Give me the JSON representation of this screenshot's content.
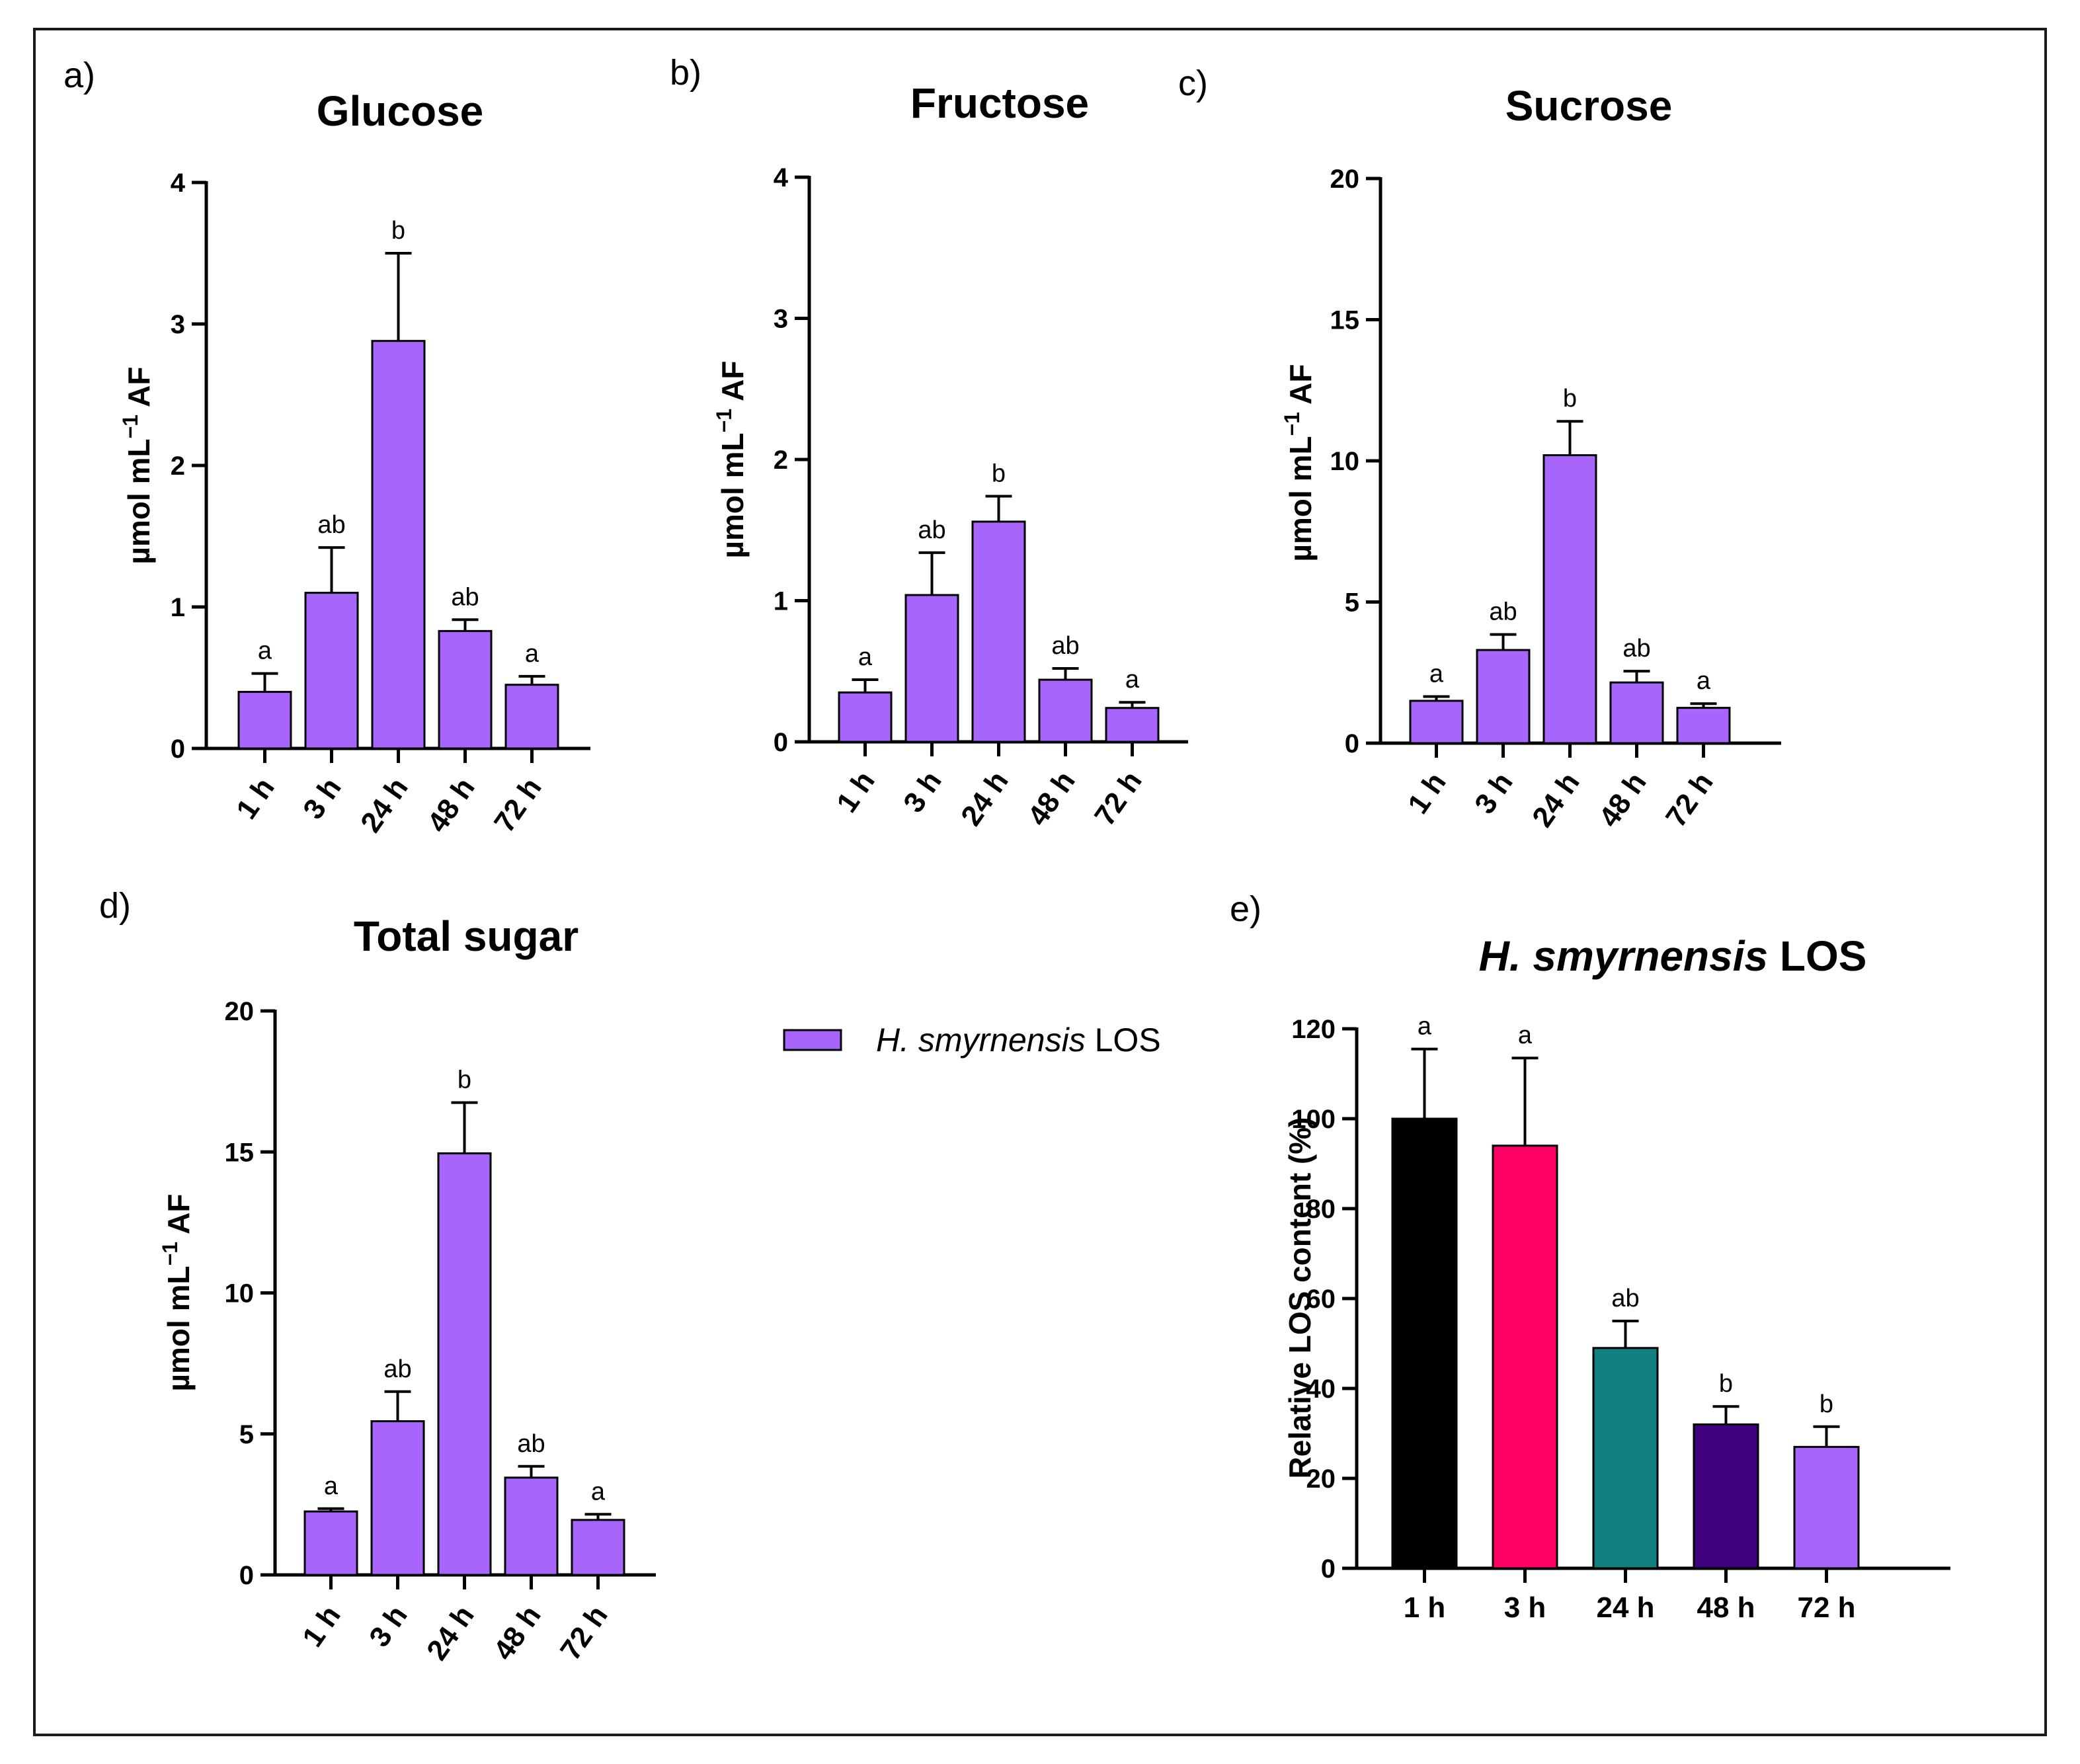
{
  "colors": {
    "bar": "#a765fb",
    "axis": "#000000",
    "los_bars": [
      "#000000",
      "#ff0066",
      "#127f80",
      "#3f007f",
      "#a765fb"
    ]
  },
  "legend": {
    "italic": "H. smyrnensis",
    "rest": " LOS"
  },
  "chart_data": [
    {
      "panel": "a)",
      "type": "bar",
      "title": "Glucose",
      "ylabel": {
        "base": "µmol mL",
        "sup": "−1",
        "tail": " AF"
      },
      "categories": [
        "1 h",
        "3 h",
        "24 h",
        "48 h",
        "72 h"
      ],
      "values": [
        0.4,
        1.1,
        2.88,
        0.83,
        0.45
      ],
      "errors": [
        0.13,
        0.32,
        0.62,
        0.08,
        0.06
      ],
      "significance": [
        "a",
        "ab",
        "b",
        "ab",
        "a"
      ],
      "ylim": [
        0,
        4
      ],
      "yticks": [
        0,
        1,
        2,
        3,
        4
      ],
      "ytick_labels": [
        "0",
        "1",
        "2",
        "3",
        "4"
      ]
    },
    {
      "panel": "b)",
      "type": "bar",
      "title": "Fructose",
      "ylabel": {
        "base": "µmol mL",
        "sup": "−1",
        "tail": " AF"
      },
      "categories": [
        "1 h",
        "3 h",
        "24 h",
        "48 h",
        "72 h"
      ],
      "values": [
        0.35,
        1.04,
        1.56,
        0.44,
        0.24
      ],
      "errors": [
        0.09,
        0.3,
        0.18,
        0.08,
        0.04
      ],
      "significance": [
        "a",
        "ab",
        "b",
        "ab",
        "a"
      ],
      "ylim": [
        0,
        4
      ],
      "yticks": [
        0,
        1,
        2,
        3,
        4
      ],
      "ytick_labels": [
        "0",
        "1",
        "2",
        "3",
        "4"
      ]
    },
    {
      "panel": "c)",
      "type": "bar",
      "title": "Sucrose",
      "ylabel": {
        "base": "µmol mL",
        "sup": "−1",
        "tail": " AF"
      },
      "categories": [
        "1 h",
        "3 h",
        "24 h",
        "48 h",
        "72 h"
      ],
      "values": [
        1.5,
        3.3,
        10.2,
        2.15,
        1.25
      ],
      "errors": [
        0.15,
        0.55,
        1.2,
        0.4,
        0.15
      ],
      "significance": [
        "a",
        "ab",
        "b",
        "ab",
        "a"
      ],
      "ylim": [
        0,
        20
      ],
      "yticks": [
        0,
        5,
        10,
        15,
        20
      ],
      "ytick_labels": [
        "0",
        "5",
        "10",
        "15",
        "20"
      ]
    },
    {
      "panel": "d)",
      "type": "bar",
      "title": "Total sugar",
      "ylabel": {
        "base": "µmol mL",
        "sup": "−1",
        "tail": " AF"
      },
      "categories": [
        "1 h",
        "3 h",
        "24 h",
        "48 h",
        "72 h"
      ],
      "values": [
        2.25,
        5.45,
        14.95,
        3.45,
        1.95
      ],
      "errors": [
        0.1,
        1.05,
        1.8,
        0.4,
        0.2
      ],
      "significance": [
        "a",
        "ab",
        "b",
        "ab",
        "a"
      ],
      "ylim": [
        0,
        20
      ],
      "yticks": [
        0,
        5,
        10,
        15,
        20
      ],
      "ytick_labels": [
        "0",
        "5",
        "10",
        "15",
        "20"
      ]
    },
    {
      "panel": "e)",
      "type": "bar",
      "title_italic": "H. smyrnensis",
      "title_rest": " LOS",
      "ylabel_text": "Relative LOS content (%)",
      "categories": [
        "1 h",
        "3 h",
        "24 h",
        "48 h",
        "72 h"
      ],
      "values": [
        100,
        94,
        49,
        32,
        27
      ],
      "errors": [
        15.5,
        19.5,
        6,
        4,
        4.5
      ],
      "significance": [
        "a",
        "a",
        "ab",
        "b",
        "b"
      ],
      "ylim": [
        0,
        120
      ],
      "yticks": [
        0,
        20,
        40,
        60,
        80,
        100,
        120
      ],
      "ytick_labels": [
        "0",
        "20",
        "40",
        "60",
        "80",
        "100",
        "120"
      ]
    }
  ]
}
